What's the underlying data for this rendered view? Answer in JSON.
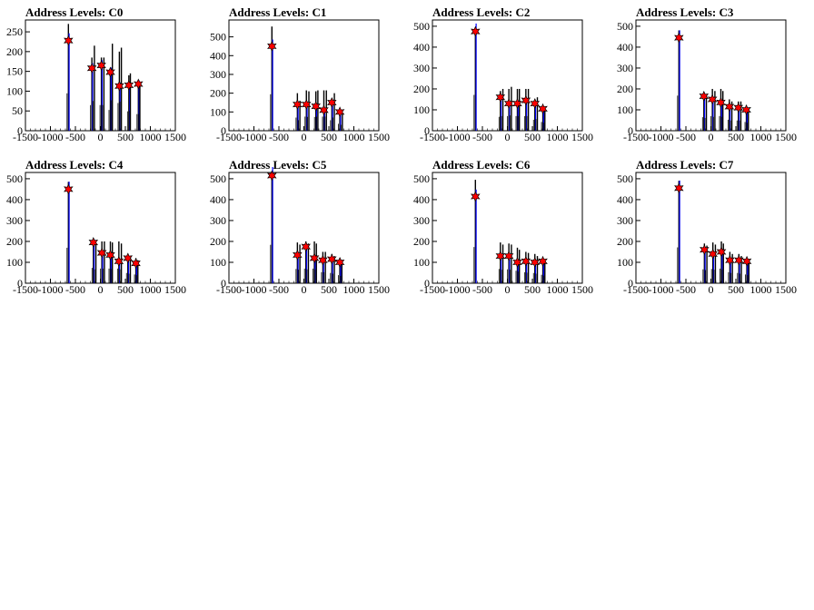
{
  "chart_data": [
    {
      "type": "histogram",
      "title": "Address Levels: C0",
      "x_ticks": [
        "-1500",
        "-1000",
        "-500",
        "0",
        "500",
        "1000",
        "1500"
      ],
      "y_ticks": [
        "0",
        "50",
        "100",
        "150",
        "200",
        "250"
      ],
      "xlim": [
        -1500,
        1500
      ],
      "ylim": [
        0,
        280
      ],
      "peaks": [
        {
          "x": -640,
          "height": 270,
          "marker": 228
        },
        {
          "x": -170,
          "height": 185,
          "marker": 158
        },
        {
          "x": -120,
          "height": 215,
          "marker": 0
        },
        {
          "x": 20,
          "height": 185,
          "marker": 165
        },
        {
          "x": 70,
          "height": 185,
          "marker": 0
        },
        {
          "x": 200,
          "height": 150,
          "marker": 148
        },
        {
          "x": 240,
          "height": 220,
          "marker": 0
        },
        {
          "x": 380,
          "height": 200,
          "marker": 113
        },
        {
          "x": 420,
          "height": 210,
          "marker": 0
        },
        {
          "x": 570,
          "height": 140,
          "marker": 115
        },
        {
          "x": 600,
          "height": 145,
          "marker": 0
        },
        {
          "x": 760,
          "height": 120,
          "marker": 118
        },
        {
          "x": 790,
          "height": 120,
          "marker": 0
        }
      ]
    },
    {
      "type": "histogram",
      "title": "Address Levels: C1",
      "x_ticks": [
        "-1500",
        "-1000",
        "-500",
        "0",
        "500",
        "1000",
        "1500"
      ],
      "y_ticks": [
        "0",
        "100",
        "200",
        "300",
        "400",
        "500"
      ],
      "xlim": [
        -1500,
        1500
      ],
      "ylim": [
        0,
        590
      ],
      "peaks": [
        {
          "x": -640,
          "height": 555,
          "marker": 450
        },
        {
          "x": -130,
          "height": 200,
          "marker": 140
        },
        {
          "x": -80,
          "height": 160,
          "marker": 0
        },
        {
          "x": 50,
          "height": 215,
          "marker": 140
        },
        {
          "x": 100,
          "height": 210,
          "marker": 0
        },
        {
          "x": 240,
          "height": 210,
          "marker": 130
        },
        {
          "x": 280,
          "height": 215,
          "marker": 0
        },
        {
          "x": 400,
          "height": 215,
          "marker": 110
        },
        {
          "x": 450,
          "height": 215,
          "marker": 0
        },
        {
          "x": 560,
          "height": 160,
          "marker": 150
        },
        {
          "x": 610,
          "height": 200,
          "marker": 0
        },
        {
          "x": 720,
          "height": 105,
          "marker": 100
        },
        {
          "x": 770,
          "height": 90,
          "marker": 0
        }
      ]
    },
    {
      "type": "histogram",
      "title": "Address Levels: C2",
      "x_ticks": [
        "-1500",
        "-1000",
        "-500",
        "0",
        "500",
        "1000",
        "1500"
      ],
      "y_ticks": [
        "0",
        "100",
        "200",
        "300",
        "400",
        "500"
      ],
      "xlim": [
        -1500,
        1500
      ],
      "ylim": [
        0,
        530
      ],
      "peaks": [
        {
          "x": -640,
          "height": 490,
          "marker": 475
        },
        {
          "x": -140,
          "height": 190,
          "marker": 160
        },
        {
          "x": -90,
          "height": 200,
          "marker": 0
        },
        {
          "x": 30,
          "height": 200,
          "marker": 130
        },
        {
          "x": 80,
          "height": 210,
          "marker": 0
        },
        {
          "x": 200,
          "height": 200,
          "marker": 130
        },
        {
          "x": 240,
          "height": 200,
          "marker": 0
        },
        {
          "x": 370,
          "height": 200,
          "marker": 145
        },
        {
          "x": 420,
          "height": 200,
          "marker": 0
        },
        {
          "x": 550,
          "height": 150,
          "marker": 130
        },
        {
          "x": 600,
          "height": 160,
          "marker": 0
        },
        {
          "x": 710,
          "height": 120,
          "marker": 105
        },
        {
          "x": 750,
          "height": 110,
          "marker": 0
        }
      ]
    },
    {
      "type": "histogram",
      "title": "Address Levels: C3",
      "x_ticks": [
        "-1500",
        "-1000",
        "-500",
        "0",
        "500",
        "1000",
        "1500"
      ],
      "y_ticks": [
        "0",
        "100",
        "200",
        "300",
        "400",
        "500"
      ],
      "xlim": [
        -1500,
        1500
      ],
      "ylim": [
        0,
        530
      ],
      "peaks": [
        {
          "x": -640,
          "height": 480,
          "marker": 445
        },
        {
          "x": -140,
          "height": 185,
          "marker": 165
        },
        {
          "x": -90,
          "height": 175,
          "marker": 0
        },
        {
          "x": 30,
          "height": 200,
          "marker": 150
        },
        {
          "x": 80,
          "height": 190,
          "marker": 0
        },
        {
          "x": 200,
          "height": 200,
          "marker": 135
        },
        {
          "x": 240,
          "height": 190,
          "marker": 0
        },
        {
          "x": 370,
          "height": 150,
          "marker": 115
        },
        {
          "x": 420,
          "height": 140,
          "marker": 0
        },
        {
          "x": 550,
          "height": 140,
          "marker": 110
        },
        {
          "x": 600,
          "height": 140,
          "marker": 0
        },
        {
          "x": 710,
          "height": 120,
          "marker": 100
        },
        {
          "x": 750,
          "height": 110,
          "marker": 0
        }
      ]
    },
    {
      "type": "histogram",
      "title": "Address Levels: C4",
      "x_ticks": [
        "-1500",
        "-1000",
        "-500",
        "0",
        "500",
        "1000",
        "1500"
      ],
      "y_ticks": [
        "0",
        "100",
        "200",
        "300",
        "400",
        "500"
      ],
      "xlim": [
        -1500,
        1500
      ],
      "ylim": [
        0,
        530
      ],
      "peaks": [
        {
          "x": -640,
          "height": 485,
          "marker": 450
        },
        {
          "x": -140,
          "height": 210,
          "marker": 195
        },
        {
          "x": -90,
          "height": 190,
          "marker": 0
        },
        {
          "x": 30,
          "height": 200,
          "marker": 145
        },
        {
          "x": 80,
          "height": 200,
          "marker": 0
        },
        {
          "x": 200,
          "height": 200,
          "marker": 135
        },
        {
          "x": 240,
          "height": 195,
          "marker": 0
        },
        {
          "x": 370,
          "height": 200,
          "marker": 105
        },
        {
          "x": 420,
          "height": 190,
          "marker": 0
        },
        {
          "x": 550,
          "height": 140,
          "marker": 120
        },
        {
          "x": 600,
          "height": 130,
          "marker": 0
        },
        {
          "x": 710,
          "height": 120,
          "marker": 95
        },
        {
          "x": 750,
          "height": 110,
          "marker": 0
        }
      ]
    },
    {
      "type": "histogram",
      "title": "Address Levels: C5",
      "x_ticks": [
        "-1500",
        "-1000",
        "-500",
        "0",
        "500",
        "1000",
        "1500"
      ],
      "y_ticks": [
        "0",
        "100",
        "200",
        "300",
        "400",
        "500"
      ],
      "xlim": [
        -1500,
        1500
      ],
      "ylim": [
        0,
        530
      ],
      "peaks": [
        {
          "x": -640,
          "height": 525,
          "marker": 515
        },
        {
          "x": -130,
          "height": 195,
          "marker": 135
        },
        {
          "x": -80,
          "height": 185,
          "marker": 0
        },
        {
          "x": 40,
          "height": 200,
          "marker": 175
        },
        {
          "x": 90,
          "height": 190,
          "marker": 0
        },
        {
          "x": 210,
          "height": 200,
          "marker": 120
        },
        {
          "x": 250,
          "height": 190,
          "marker": 0
        },
        {
          "x": 380,
          "height": 150,
          "marker": 110
        },
        {
          "x": 430,
          "height": 150,
          "marker": 0
        },
        {
          "x": 560,
          "height": 140,
          "marker": 115
        },
        {
          "x": 610,
          "height": 130,
          "marker": 0
        },
        {
          "x": 720,
          "height": 110,
          "marker": 100
        },
        {
          "x": 760,
          "height": 100,
          "marker": 0
        }
      ]
    },
    {
      "type": "histogram",
      "title": "Address Levels: C6",
      "x_ticks": [
        "-1500",
        "-1000",
        "-500",
        "0",
        "500",
        "1000",
        "1500"
      ],
      "y_ticks": [
        "0",
        "100",
        "200",
        "300",
        "400",
        "500"
      ],
      "xlim": [
        -1500,
        1500
      ],
      "ylim": [
        0,
        530
      ],
      "peaks": [
        {
          "x": -640,
          "height": 495,
          "marker": 415
        },
        {
          "x": -140,
          "height": 195,
          "marker": 130
        },
        {
          "x": -90,
          "height": 185,
          "marker": 0
        },
        {
          "x": 30,
          "height": 190,
          "marker": 130
        },
        {
          "x": 80,
          "height": 185,
          "marker": 0
        },
        {
          "x": 200,
          "height": 170,
          "marker": 100
        },
        {
          "x": 240,
          "height": 160,
          "marker": 0
        },
        {
          "x": 370,
          "height": 150,
          "marker": 105
        },
        {
          "x": 420,
          "height": 145,
          "marker": 0
        },
        {
          "x": 550,
          "height": 140,
          "marker": 100
        },
        {
          "x": 600,
          "height": 130,
          "marker": 0
        },
        {
          "x": 710,
          "height": 115,
          "marker": 105
        },
        {
          "x": 750,
          "height": 105,
          "marker": 0
        }
      ]
    },
    {
      "type": "histogram",
      "title": "Address Levels: C7",
      "x_ticks": [
        "-1500",
        "-1000",
        "-500",
        "0",
        "500",
        "1000",
        "1500"
      ],
      "y_ticks": [
        "0",
        "100",
        "200",
        "300",
        "400",
        "500"
      ],
      "xlim": [
        -1500,
        1500
      ],
      "ylim": [
        0,
        530
      ],
      "peaks": [
        {
          "x": -640,
          "height": 490,
          "marker": 455
        },
        {
          "x": -130,
          "height": 190,
          "marker": 160
        },
        {
          "x": -80,
          "height": 180,
          "marker": 0
        },
        {
          "x": 40,
          "height": 195,
          "marker": 140
        },
        {
          "x": 90,
          "height": 185,
          "marker": 0
        },
        {
          "x": 210,
          "height": 200,
          "marker": 150
        },
        {
          "x": 250,
          "height": 190,
          "marker": 0
        },
        {
          "x": 380,
          "height": 150,
          "marker": 110
        },
        {
          "x": 430,
          "height": 140,
          "marker": 0
        },
        {
          "x": 560,
          "height": 140,
          "marker": 110
        },
        {
          "x": 610,
          "height": 130,
          "marker": 0
        },
        {
          "x": 720,
          "height": 120,
          "marker": 105
        },
        {
          "x": 760,
          "height": 110,
          "marker": 0
        }
      ]
    }
  ]
}
